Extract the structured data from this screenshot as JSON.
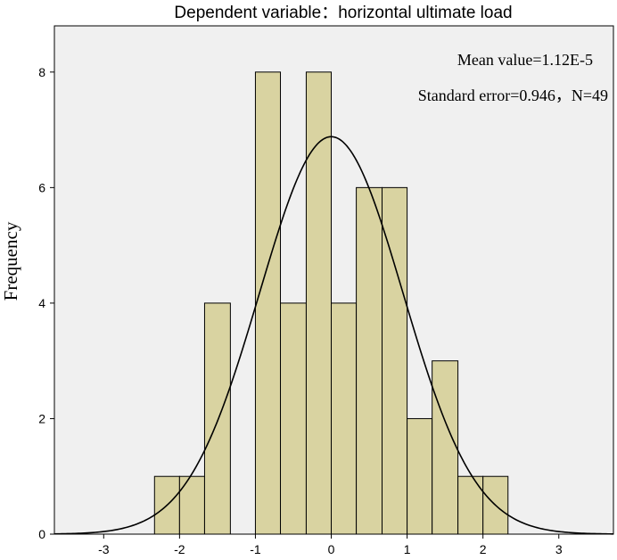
{
  "chart_data": {
    "type": "bar",
    "title": "Dependent variable：horizontal ultimate load",
    "ylabel": "Frequency",
    "xlabel": "",
    "annotations": {
      "mean": "Mean value=1.12E-5",
      "stats": "Standard error=0.946，N=49"
    },
    "xlim": [
      -3.65,
      3.72
    ],
    "ylim": [
      0,
      8.8
    ],
    "x_ticks": [
      -3,
      -2,
      -1,
      0,
      1,
      2,
      3
    ],
    "y_ticks": [
      0,
      2,
      4,
      6,
      8
    ],
    "bins": [
      {
        "x0": -2.33,
        "x1": -2.0,
        "count": 1
      },
      {
        "x0": -2.0,
        "x1": -1.67,
        "count": 1
      },
      {
        "x0": -1.67,
        "x1": -1.33,
        "count": 4
      },
      {
        "x0": -1.0,
        "x1": -0.67,
        "count": 8
      },
      {
        "x0": -0.67,
        "x1": -0.33,
        "count": 4
      },
      {
        "x0": -0.33,
        "x1": 0.0,
        "count": 8
      },
      {
        "x0": 0.0,
        "x1": 0.33,
        "count": 4
      },
      {
        "x0": 0.33,
        "x1": 0.67,
        "count": 6
      },
      {
        "x0": 0.67,
        "x1": 1.0,
        "count": 6
      },
      {
        "x0": 1.0,
        "x1": 1.33,
        "count": 2
      },
      {
        "x0": 1.33,
        "x1": 1.67,
        "count": 3
      },
      {
        "x0": 1.67,
        "x1": 2.0,
        "count": 1
      },
      {
        "x0": 2.0,
        "x1": 2.33,
        "count": 1
      }
    ],
    "normal_curve": {
      "mean": 1.12e-05,
      "sd": 0.946,
      "n": 49,
      "bin_width": 0.333
    },
    "grid": false,
    "colors": {
      "bar_fill": "#d9d3a1",
      "bar_stroke": "#000000",
      "plot_bg": "#f0f0f0",
      "curve": "#000000"
    }
  }
}
